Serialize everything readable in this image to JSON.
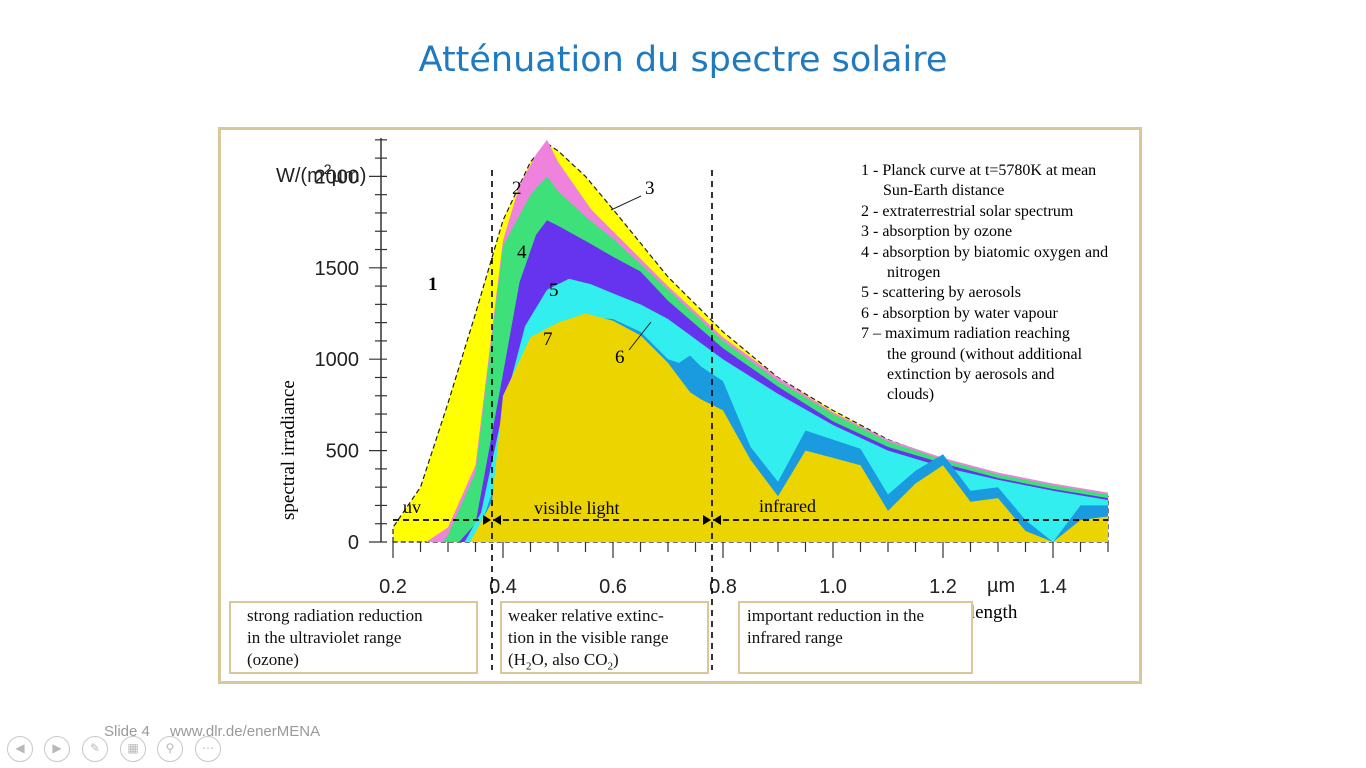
{
  "slide": {
    "title": "Atténuation du spectre solaire",
    "footer": {
      "slide_number": "Slide 4",
      "url": "www.dlr.de/enerMENA"
    }
  },
  "colors": {
    "title": "#1f7ac0",
    "planck": "#ffff00",
    "extraterrestrial": "#ee82dd",
    "ozone": "#3ee07a",
    "oxygen_nitrogen": "#6633ee",
    "aerosols": "#33eeee",
    "water_vapour": "#1a9be0",
    "ground": "#ecd400"
  },
  "chart_data": {
    "type": "area",
    "xlabel": "wave length",
    "xunit": "µm",
    "ylabel": "spectral irradiance",
    "yunit_line1": "W/(m",
    "yunit_sup": "2",
    "yunit_line2": "µm)",
    "xlim": [
      0.2,
      1.5
    ],
    "ylim": [
      0,
      2200
    ],
    "x_ticks": [
      "0.2",
      "0.4",
      "0.6",
      "0.8",
      "1.0",
      "1.2",
      "1.4"
    ],
    "y_ticks": [
      "2000",
      "1500",
      "1000",
      "500",
      "0"
    ],
    "region_markers": [
      "uv",
      "visible light",
      "infrared"
    ],
    "region_boundaries": [
      0.38,
      0.78
    ],
    "series": [
      {
        "id": "1",
        "name": "Planck curve at t=5780K at mean Sun-Earth distance",
        "x": [
          0.2,
          0.25,
          0.3,
          0.35,
          0.4,
          0.45,
          0.48,
          0.5,
          0.55,
          0.6,
          0.7,
          0.8,
          0.9,
          1.0,
          1.1,
          1.2,
          1.3,
          1.4,
          1.5
        ],
        "values": [
          80,
          300,
          760,
          1250,
          1760,
          2080,
          2180,
          2140,
          2000,
          1820,
          1450,
          1150,
          900,
          720,
          560,
          450,
          370,
          300,
          250
        ]
      },
      {
        "id": "2",
        "name": "extraterrestrial solar spectrum",
        "x": [
          0.26,
          0.3,
          0.35,
          0.4,
          0.43,
          0.46,
          0.48,
          0.5,
          0.53,
          0.56,
          0.6,
          0.7,
          0.8,
          0.9,
          1.0,
          1.1,
          1.2,
          1.3,
          1.4,
          1.5
        ],
        "values": [
          0,
          80,
          420,
          1650,
          1950,
          2120,
          2200,
          2080,
          1950,
          1820,
          1700,
          1400,
          1120,
          900,
          710,
          560,
          460,
          380,
          320,
          270
        ]
      },
      {
        "id": "3",
        "name": "absorption by ozone",
        "x": [
          0.29,
          0.3,
          0.35,
          0.4,
          0.45,
          0.48,
          0.5,
          0.55,
          0.6,
          0.7,
          0.8,
          0.9,
          1.0,
          1.1,
          1.2,
          1.3,
          1.4,
          1.5
        ],
        "values": [
          0,
          40,
          380,
          1620,
          1900,
          2000,
          1920,
          1780,
          1660,
          1380,
          1100,
          880,
          700,
          550,
          450,
          370,
          310,
          260
        ]
      },
      {
        "id": "4",
        "name": "absorption by biatomic oxygen and nitrogen",
        "x": [
          0.32,
          0.35,
          0.4,
          0.43,
          0.46,
          0.48,
          0.5,
          0.53,
          0.56,
          0.6,
          0.65,
          0.7,
          0.8,
          0.9,
          1.0,
          1.1,
          1.2,
          1.3,
          1.4,
          1.5
        ],
        "values": [
          0,
          100,
          920,
          1420,
          1680,
          1760,
          1730,
          1680,
          1630,
          1560,
          1480,
          1320,
          1060,
          850,
          660,
          520,
          430,
          350,
          290,
          240
        ]
      },
      {
        "id": "5",
        "name": "scattering by aerosols",
        "x": [
          0.33,
          0.36,
          0.4,
          0.44,
          0.48,
          0.52,
          0.56,
          0.6,
          0.65,
          0.7,
          0.8,
          0.9,
          1.0,
          1.1,
          1.2,
          1.3,
          1.4,
          1.5
        ],
        "values": [
          0,
          160,
          720,
          1180,
          1380,
          1440,
          1410,
          1360,
          1300,
          1220,
          1000,
          810,
          640,
          500,
          410,
          340,
          280,
          230
        ]
      },
      {
        "id": "6",
        "name": "absorption by water vapour",
        "x": [
          0.35,
          0.4,
          0.45,
          0.5,
          0.55,
          0.6,
          0.65,
          0.7,
          0.72,
          0.74,
          0.76,
          0.8,
          0.85,
          0.9,
          0.95,
          1.0,
          1.05,
          1.1,
          1.15,
          1.2,
          1.25,
          1.3,
          1.35,
          1.4,
          1.45,
          1.5
        ],
        "values": [
          0,
          450,
          950,
          1150,
          1230,
          1220,
          1150,
          1000,
          980,
          1020,
          960,
          880,
          520,
          330,
          610,
          560,
          510,
          260,
          390,
          480,
          280,
          300,
          120,
          0,
          200,
          200
        ]
      },
      {
        "id": "7",
        "name": "maximum radiation reaching the ground (without additional extinction by aerosols and clouds)",
        "x": [
          0.34,
          0.38,
          0.4,
          0.45,
          0.5,
          0.55,
          0.6,
          0.65,
          0.7,
          0.72,
          0.74,
          0.76,
          0.8,
          0.85,
          0.9,
          0.95,
          1.0,
          1.05,
          1.1,
          1.15,
          1.2,
          1.25,
          1.3,
          1.35,
          1.4,
          1.45,
          1.5
        ],
        "values": [
          0,
          220,
          800,
          1120,
          1200,
          1250,
          1210,
          1130,
          980,
          900,
          820,
          780,
          720,
          450,
          250,
          500,
          460,
          420,
          170,
          320,
          420,
          220,
          240,
          60,
          0,
          120,
          140
        ]
      }
    ],
    "legend": [
      {
        "line1": "1 - Planck curve at t=5780K at mean",
        "line2": "Sun-Earth distance"
      },
      {
        "line1": "2 - extraterrestrial solar spectrum"
      },
      {
        "line1": "3 - absorption  by ozone"
      },
      {
        "line1": "4 - absorption by biatomic oxygen and",
        "line2": "nitrogen"
      },
      {
        "line1": "5 - scattering by aerosols"
      },
      {
        "line1": "6 - absorption by water vapour"
      },
      {
        "line1": "7 – maximum radiation reaching",
        "line2": "the ground (without additional",
        "line3": "extinction by aerosols and",
        "line4": "clouds)"
      }
    ],
    "area_labels": [
      "1",
      "2",
      "3",
      "4",
      "5",
      "6",
      "7"
    ]
  },
  "notes": {
    "uv": {
      "line1": "strong radiation reduction",
      "line2": "in the ultraviolet range",
      "line3": "(ozone)"
    },
    "visible": {
      "line1": "weaker relative extinc-",
      "line2": "tion in the visible range",
      "line3_a": "(H",
      "line3_b": "2",
      "line3_c": "O, also CO",
      "line3_d": "2",
      "line3_e": ")"
    },
    "infrared": {
      "line1": "important reduction in the",
      "line2": "infrared range"
    }
  },
  "controls": [
    "previous",
    "next",
    "pen",
    "slides",
    "zoom",
    "more"
  ]
}
